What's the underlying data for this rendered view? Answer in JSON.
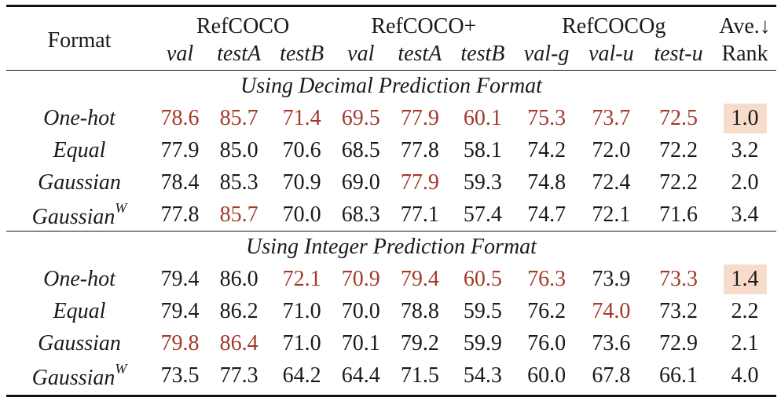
{
  "header": {
    "format_label": "Format",
    "groups": [
      {
        "label": "RefCOCO",
        "span": 3
      },
      {
        "label": "RefCOCO+",
        "span": 3
      },
      {
        "label": "RefCOCOg",
        "span": 3
      }
    ],
    "rank_top": "Ave.↓",
    "rank_bottom": "Rank",
    "subcolumns": [
      "val",
      "testA",
      "testB",
      "val",
      "testA",
      "testB",
      "val-g",
      "val-u",
      "test-u"
    ]
  },
  "sections": [
    {
      "title": "Using Decimal Prediction Format",
      "rows": [
        {
          "format": "One-hot",
          "sup": "",
          "values": [
            "78.6",
            "85.7",
            "71.4",
            "69.5",
            "77.9",
            "60.1",
            "75.3",
            "73.7",
            "72.5"
          ],
          "highlight": [
            true,
            true,
            true,
            true,
            true,
            true,
            true,
            true,
            true
          ],
          "rank": "1.0",
          "rank_best": true
        },
        {
          "format": "Equal",
          "sup": "",
          "values": [
            "77.9",
            "85.0",
            "70.6",
            "68.5",
            "77.8",
            "58.1",
            "74.2",
            "72.0",
            "72.2"
          ],
          "highlight": [
            false,
            false,
            false,
            false,
            false,
            false,
            false,
            false,
            false
          ],
          "rank": "3.2",
          "rank_best": false
        },
        {
          "format": "Gaussian",
          "sup": "",
          "values": [
            "78.4",
            "85.3",
            "70.9",
            "69.0",
            "77.9",
            "59.3",
            "74.8",
            "72.4",
            "72.2"
          ],
          "highlight": [
            false,
            false,
            false,
            false,
            true,
            false,
            false,
            false,
            false
          ],
          "rank": "2.0",
          "rank_best": false
        },
        {
          "format": "Gaussian",
          "sup": "W",
          "values": [
            "77.8",
            "85.7",
            "70.0",
            "68.3",
            "77.1",
            "57.4",
            "74.7",
            "72.1",
            "71.6"
          ],
          "highlight": [
            false,
            true,
            false,
            false,
            false,
            false,
            false,
            false,
            false
          ],
          "rank": "3.4",
          "rank_best": false
        }
      ]
    },
    {
      "title": "Using Integer Prediction Format",
      "rows": [
        {
          "format": "One-hot",
          "sup": "",
          "values": [
            "79.4",
            "86.0",
            "72.1",
            "70.9",
            "79.4",
            "60.5",
            "76.3",
            "73.9",
            "73.3"
          ],
          "highlight": [
            false,
            false,
            true,
            true,
            true,
            true,
            true,
            false,
            true
          ],
          "rank": "1.4",
          "rank_best": true
        },
        {
          "format": "Equal",
          "sup": "",
          "values": [
            "79.4",
            "86.2",
            "71.0",
            "70.0",
            "78.8",
            "59.5",
            "76.2",
            "74.0",
            "73.2"
          ],
          "highlight": [
            false,
            false,
            false,
            false,
            false,
            false,
            false,
            true,
            false
          ],
          "rank": "2.2",
          "rank_best": false
        },
        {
          "format": "Gaussian",
          "sup": "",
          "values": [
            "79.8",
            "86.4",
            "71.0",
            "70.1",
            "79.2",
            "59.9",
            "76.0",
            "73.6",
            "72.9"
          ],
          "highlight": [
            true,
            true,
            false,
            false,
            false,
            false,
            false,
            false,
            false
          ],
          "rank": "2.1",
          "rank_best": false
        },
        {
          "format": "Gaussian",
          "sup": "W",
          "values": [
            "73.5",
            "77.3",
            "64.2",
            "64.4",
            "71.5",
            "54.3",
            "60.0",
            "67.8",
            "66.1"
          ],
          "highlight": [
            false,
            false,
            false,
            false,
            false,
            false,
            false,
            false,
            false
          ],
          "rank": "4.0",
          "rank_best": false
        }
      ]
    }
  ],
  "colors": {
    "highlight_text": "#a33a2a",
    "best_rank_bg": "#f8dccb"
  }
}
